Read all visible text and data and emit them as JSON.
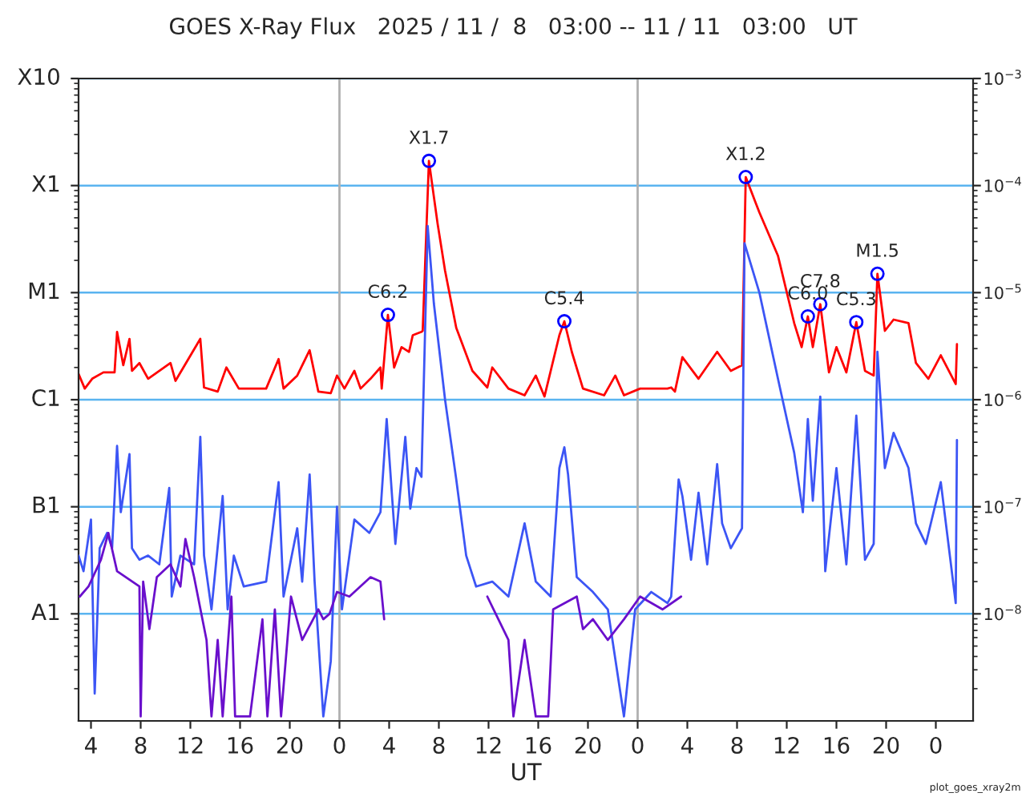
{
  "chart_data": {
    "type": "line",
    "title": "GOES X-Ray Flux   2025 / 11 /  8   03:00 -- 11 / 11   03:00   UT",
    "xlabel": "UT",
    "log": "y",
    "grid": "y",
    "legend": false,
    "xlim": [
      "2025-11-08T03:00",
      "2025-11-11T03:00"
    ],
    "xticks": [
      {
        "value": "2025-11-08T04:00",
        "label": "4"
      },
      {
        "value": "2025-11-08T08:00",
        "label": "8"
      },
      {
        "value": "2025-11-08T12:00",
        "label": "12"
      },
      {
        "value": "2025-11-08T16:00",
        "label": "16"
      },
      {
        "value": "2025-11-08T20:00",
        "label": "20"
      },
      {
        "value": "2025-11-09T00:00",
        "label": "0"
      },
      {
        "value": "2025-11-09T04:00",
        "label": "4"
      },
      {
        "value": "2025-11-09T08:00",
        "label": "8"
      },
      {
        "value": "2025-11-09T12:00",
        "label": "12"
      },
      {
        "value": "2025-11-09T16:00",
        "label": "16"
      },
      {
        "value": "2025-11-09T20:00",
        "label": "20"
      },
      {
        "value": "2025-11-10T00:00",
        "label": "0"
      },
      {
        "value": "2025-11-10T04:00",
        "label": "4"
      },
      {
        "value": "2025-11-10T08:00",
        "label": "8"
      },
      {
        "value": "2025-11-10T12:00",
        "label": "12"
      },
      {
        "value": "2025-11-10T16:00",
        "label": "16"
      },
      {
        "value": "2025-11-10T20:00",
        "label": "20"
      },
      {
        "value": "2025-11-11T00:00",
        "label": "0"
      }
    ],
    "ylim": [
      1e-09,
      0.001
    ],
    "yticks": [
      {
        "value": 1e-08,
        "label": "10$^{−8}$"
      },
      {
        "value": 1e-07,
        "label": "10$^{−7}$"
      },
      {
        "value": 1e-06,
        "label": "10$^{−6}$"
      },
      {
        "value": 1e-05,
        "label": "10$^{−5}$"
      },
      {
        "value": 0.0001,
        "label": "10$^{−4}$"
      },
      {
        "value": 0.001,
        "label": "10$^{−3}$"
      }
    ],
    "ref_lines": [
      {
        "axis": "x",
        "value": "2025-11-09T00:00",
        "color": "#b0b0b0"
      },
      {
        "axis": "x",
        "value": "2025-11-10T00:00",
        "color": "#b0b0b0"
      }
    ],
    "series": [
      {
        "color": "#ff0000",
        "x": [
          "2025-11-08T03:00",
          "2025-11-08T03:30",
          "2025-11-08T04:06",
          "2025-11-08T05:00",
          "2025-11-08T05:54",
          "2025-11-08T06:06",
          "2025-11-08T06:36",
          "2025-11-08T07:06",
          "2025-11-08T07:18",
          "2025-11-08T07:54",
          "2025-11-08T08:36",
          "2025-11-08T10:24",
          "2025-11-08T10:48",
          "2025-11-08T12:48",
          "2025-11-08T13:06",
          "2025-11-08T14:12",
          "2025-11-08T14:54",
          "2025-11-08T15:54",
          "2025-11-08T18:06",
          "2025-11-08T19:06",
          "2025-11-08T19:30",
          "2025-11-08T20:36",
          "2025-11-08T21:36",
          "2025-11-08T22:18",
          "2025-11-08T23:18",
          "2025-11-08T23:48",
          "2025-11-09T00:24",
          "2025-11-09T01:12",
          "2025-11-09T01:42",
          "2025-11-09T02:30",
          "2025-11-09T03:18",
          "2025-11-09T03:24",
          "2025-11-09T03:54",
          "2025-11-09T04:24",
          "2025-11-09T05:00",
          "2025-11-09T05:36",
          "2025-11-09T05:54",
          "2025-11-09T06:36",
          "2025-11-09T06:42",
          "2025-11-09T07:12",
          "2025-11-09T07:54",
          "2025-11-09T08:30",
          "2025-11-09T09:24",
          "2025-11-09T10:42",
          "2025-11-09T11:54",
          "2025-11-09T12:18",
          "2025-11-09T13:36",
          "2025-11-09T14:54",
          "2025-11-09T15:48",
          "2025-11-09T16:30",
          "2025-11-09T17:42",
          "2025-11-09T18:06",
          "2025-11-09T18:42",
          "2025-11-09T19:36",
          "2025-11-09T21:18",
          "2025-11-09T22:12",
          "2025-11-09T22:54",
          "2025-11-10T00:12",
          "2025-11-10T02:24",
          "2025-11-10T02:42",
          "2025-11-10T03:00",
          "2025-11-10T03:36",
          "2025-11-10T04:54",
          "2025-11-10T06:24",
          "2025-11-10T07:30",
          "2025-11-10T08:24",
          "2025-11-10T08:42",
          "2025-11-10T09:48",
          "2025-11-10T11:18",
          "2025-11-10T12:36",
          "2025-11-10T13:12",
          "2025-11-10T13:42",
          "2025-11-10T14:06",
          "2025-11-10T14:42",
          "2025-11-10T15:24",
          "2025-11-10T16:00",
          "2025-11-10T16:48",
          "2025-11-10T17:36",
          "2025-11-10T18:18",
          "2025-11-10T19:00",
          "2025-11-10T19:18",
          "2025-11-10T19:54",
          "2025-11-10T20:36",
          "2025-11-10T21:48",
          "2025-11-10T22:24",
          "2025-11-10T23:24",
          "2025-11-11T00:24",
          "2025-11-11T01:36",
          "2025-11-11T01:42"
        ],
        "values": [
          1.74e-06,
          1.27e-06,
          1.57e-06,
          1.8e-06,
          1.8e-06,
          4.3e-06,
          2.1e-06,
          3.7e-06,
          1.86e-06,
          2.2e-06,
          1.57e-06,
          2.2e-06,
          1.5e-06,
          3.7e-06,
          1.3e-06,
          1.19e-06,
          2e-06,
          1.27e-06,
          1.27e-06,
          2.4e-06,
          1.27e-06,
          1.68e-06,
          2.9e-06,
          1.19e-06,
          1.15e-06,
          1.68e-06,
          1.27e-06,
          1.86e-06,
          1.27e-06,
          1.57e-06,
          2e-06,
          1.27e-06,
          6.2e-06,
          2e-06,
          3.1e-06,
          2.8e-06,
          4e-06,
          4.3e-06,
          4.4e-06,
          0.00017,
          4.4e-05,
          1.6e-05,
          4.7e-06,
          1.86e-06,
          1.3e-06,
          2e-06,
          1.27e-06,
          1.1e-06,
          1.68e-06,
          1.07e-06,
          4e-06,
          5.4e-06,
          2.8e-06,
          1.27e-06,
          1.1e-06,
          1.68e-06,
          1.1e-06,
          1.27e-06,
          1.27e-06,
          1.3e-06,
          1.19e-06,
          2.5e-06,
          1.57e-06,
          2.8e-06,
          1.86e-06,
          2.1e-06,
          0.00012,
          5.6e-05,
          2.2e-05,
          5.2e-06,
          3.1e-06,
          6e-06,
          3.1e-06,
          7.8e-06,
          1.8e-06,
          3.1e-06,
          1.8e-06,
          5.3e-06,
          1.86e-06,
          1.68e-06,
          1.5e-05,
          4.4e-06,
          5.6e-06,
          5.2e-06,
          2.2e-06,
          1.57e-06,
          2.6e-06,
          1.4e-06,
          3.3e-06
        ]
      },
      {
        "color": "#3c55f5",
        "x": [
          "2025-11-08T03:00",
          "2025-11-08T03:24",
          "2025-11-08T04:00",
          "2025-11-08T04:18",
          "2025-11-08T04:42",
          "2025-11-08T05:18",
          "2025-11-08T05:42",
          "2025-11-08T06:06",
          "2025-11-08T06:24",
          "2025-11-08T07:06",
          "2025-11-08T07:18",
          "2025-11-08T07:54",
          "2025-11-08T08:36",
          "2025-11-08T09:30",
          "2025-11-08T10:18",
          "2025-11-08T10:30",
          "2025-11-08T11:12",
          "2025-11-08T12:18",
          "2025-11-08T12:48",
          "2025-11-08T13:06",
          "2025-11-08T13:42",
          "2025-11-08T14:36",
          "2025-11-08T15:00",
          "2025-11-08T15:30",
          "2025-11-08T16:18",
          "2025-11-08T18:06",
          "2025-11-08T19:06",
          "2025-11-08T19:30",
          "2025-11-08T20:36",
          "2025-11-08T21:00",
          "2025-11-08T21:36",
          "2025-11-08T22:00",
          "2025-11-08T22:42",
          "2025-11-08T23:18",
          "2025-11-08T23:48",
          "2025-11-09T00:12",
          "2025-11-09T01:12",
          "2025-11-09T02:24",
          "2025-11-09T03:18",
          "2025-11-09T03:48",
          "2025-11-09T04:30",
          "2025-11-09T05:18",
          "2025-11-09T05:42",
          "2025-11-09T06:12",
          "2025-11-09T06:36",
          "2025-11-09T07:06",
          "2025-11-09T07:36",
          "2025-11-09T08:30",
          "2025-11-09T09:24",
          "2025-11-09T10:12",
          "2025-11-09T11:00",
          "2025-11-09T12:18",
          "2025-11-09T13:36",
          "2025-11-09T14:54",
          "2025-11-09T15:48",
          "2025-11-09T17:00",
          "2025-11-09T17:42",
          "2025-11-09T18:06",
          "2025-11-09T18:24",
          "2025-11-09T19:06",
          "2025-11-09T20:24",
          "2025-11-09T21:36",
          "2025-11-09T22:54",
          "2025-11-09T23:48",
          "2025-11-10T01:06",
          "2025-11-10T02:24",
          "2025-11-10T02:42",
          "2025-11-10T03:18",
          "2025-11-10T03:36",
          "2025-11-10T04:18",
          "2025-11-10T04:54",
          "2025-11-10T05:36",
          "2025-11-10T06:24",
          "2025-11-10T06:48",
          "2025-11-10T07:30",
          "2025-11-10T08:24",
          "2025-11-10T08:36",
          "2025-11-10T09:48",
          "2025-11-10T11:18",
          "2025-11-10T12:36",
          "2025-11-10T13:18",
          "2025-11-10T13:42",
          "2025-11-10T14:06",
          "2025-11-10T14:42",
          "2025-11-10T15:06",
          "2025-11-10T16:00",
          "2025-11-10T16:48",
          "2025-11-10T17:36",
          "2025-11-10T18:18",
          "2025-11-10T19:00",
          "2025-11-10T19:18",
          "2025-11-10T19:54",
          "2025-11-10T20:36",
          "2025-11-10T21:48",
          "2025-11-10T22:24",
          "2025-11-10T23:12",
          "2025-11-11T00:24",
          "2025-11-11T01:36",
          "2025-11-11T01:42"
        ],
        "values": [
          3.5e-08,
          2.5e-08,
          7.6e-08,
          1.8e-09,
          4.1e-08,
          5.7e-08,
          4.1e-08,
          3.7e-07,
          8.9e-08,
          3.1e-07,
          4.1e-08,
          3.2e-08,
          3.5e-08,
          2.9e-08,
          1.5e-07,
          1.45e-08,
          3.5e-08,
          2.9e-08,
          4.5e-07,
          3.5e-08,
          1.1e-08,
          1.26e-07,
          1.1e-08,
          3.5e-08,
          1.8e-08,
          2e-08,
          1.7e-07,
          1.45e-08,
          6.3e-08,
          2e-08,
          2e-07,
          2e-08,
          1.1e-09,
          3.6e-09,
          1e-07,
          1.1e-08,
          7.6e-08,
          5.7e-08,
          8.9e-08,
          6.6e-07,
          4.5e-08,
          4.5e-07,
          9.6e-08,
          2.3e-07,
          1.9e-07,
          4.2e-05,
          7.9e-06,
          1e-06,
          1.8e-07,
          3.5e-08,
          1.8e-08,
          2e-08,
          1.45e-08,
          7e-08,
          2e-08,
          1.45e-08,
          2.3e-07,
          3.6e-07,
          2e-07,
          2.2e-08,
          1.6e-08,
          1.1e-08,
          1.1e-09,
          1.1e-08,
          1.6e-08,
          1.26e-08,
          1.45e-08,
          1.8e-07,
          1.26e-07,
          3.2e-08,
          1.35e-07,
          2.9e-08,
          2.5e-07,
          7e-08,
          4.1e-08,
          6.3e-08,
          2.9e-05,
          1e-05,
          1.56e-06,
          3.2e-07,
          8.9e-08,
          6.6e-07,
          1.14e-07,
          1.07e-06,
          2.5e-08,
          2.3e-07,
          2.9e-08,
          7.1e-07,
          3.2e-08,
          4.5e-08,
          2.8e-06,
          2.3e-07,
          4.9e-07,
          2.3e-07,
          7e-08,
          4.5e-08,
          1.7e-07,
          1.26e-08,
          4.2e-07
        ]
      },
      {
        "color": "#6a0fcc",
        "x": [
          "2025-11-08T03:06",
          "2025-11-08T03:48",
          "2025-11-08T04:48",
          "2025-11-08T05:24",
          "2025-11-08T06:06",
          "2025-11-08T07:54",
          "2025-11-08T08:00",
          "2025-11-08T08:12",
          "2025-11-08T08:42",
          "2025-11-08T09:18",
          "2025-11-08T10:24",
          "2025-11-08T11:12",
          "2025-11-08T11:36",
          "2025-11-08T12:18",
          "2025-11-08T13:18",
          "2025-11-08T13:42",
          "2025-11-08T14:12",
          "2025-11-08T14:36",
          "2025-11-08T15:18",
          "2025-11-08T15:36",
          "2025-11-08T16:48",
          "2025-11-08T17:48",
          "2025-11-08T18:12",
          "2025-11-08T18:48",
          "2025-11-08T19:18",
          "2025-11-08T20:06",
          "2025-11-08T21:00",
          "2025-11-08T22:18",
          "2025-11-08T22:42",
          "2025-11-08T23:12",
          "2025-11-08T23:48",
          "2025-11-09T00:48",
          "2025-11-09T02:30",
          "2025-11-09T03:18",
          "2025-11-09T03:36",
          "2025-11-09T06:00",
          "2025-11-09T11:54",
          "2025-11-09T13:36",
          "2025-11-09T14:00",
          "2025-11-09T14:54",
          "2025-11-09T15:48",
          "2025-11-09T16:48",
          "2025-11-09T17:12",
          "2025-11-09T19:06",
          "2025-11-09T19:36",
          "2025-11-09T20:24",
          "2025-11-09T21:36",
          "2025-11-09T22:54",
          "2025-11-10T00:12",
          "2025-11-10T02:00",
          "2025-11-10T03:30"
        ],
        "values": [
          1.45e-08,
          1.8e-08,
          3.2e-08,
          5.7e-08,
          2.5e-08,
          1.8e-08,
          1.1e-09,
          2e-08,
          7.2e-09,
          2.2e-08,
          2.9e-08,
          1.8e-08,
          5e-08,
          2.2e-08,
          5.7e-09,
          1.1e-09,
          5.7e-09,
          1.1e-09,
          1.45e-08,
          1.1e-09,
          1.1e-09,
          8.9e-09,
          1.1e-09,
          1.1e-08,
          1.1e-09,
          1.45e-08,
          5.7e-09,
          1.1e-08,
          8.9e-09,
          1e-08,
          1.6e-08,
          1.45e-08,
          2.2e-08,
          2e-08,
          8.9e-09,
          null,
          1.45e-08,
          5.7e-09,
          1.1e-09,
          5.7e-09,
          1.1e-09,
          1.1e-09,
          1.1e-08,
          1.45e-08,
          7.2e-09,
          8.9e-09,
          5.7e-09,
          8.9e-09,
          1.45e-08,
          1.1e-08,
          1.45e-08
        ]
      },
      {
        "type": "scatter",
        "color": "#0000ff",
        "marker": "circle",
        "x": [
          "2025-11-09T03:54",
          "2025-11-09T07:12",
          "2025-11-09T18:06",
          "2025-11-10T08:42",
          "2025-11-10T13:42",
          "2025-11-10T14:42",
          "2025-11-10T17:36",
          "2025-11-10T19:18"
        ],
        "values": [
          6.2e-06,
          0.00017,
          5.4e-06,
          0.00012,
          6e-06,
          7.8e-06,
          5.3e-06,
          1.5e-05
        ]
      }
    ],
    "annotations": [
      {
        "text": "C6.2",
        "x": "2025-11-09T03:54",
        "y": 6.2e-06
      },
      {
        "text": "X1.7",
        "x": "2025-11-09T07:12",
        "y": 0.00017
      },
      {
        "text": "C5.4",
        "x": "2025-11-09T18:06",
        "y": 5.4e-06
      },
      {
        "text": "X1.2",
        "x": "2025-11-10T08:42",
        "y": 0.00012
      },
      {
        "text": "C6.0",
        "x": "2025-11-10T13:42",
        "y": 6e-06
      },
      {
        "text": "C7.8",
        "x": "2025-11-10T14:42",
        "y": 7.8e-06
      },
      {
        "text": "C5.3",
        "x": "2025-11-10T17:36",
        "y": 5.3e-06
      },
      {
        "text": "M1.5",
        "x": "2025-11-10T19:18",
        "y": 1.5e-05
      },
      "A1",
      "B1",
      "C1",
      "M1",
      "X1",
      "X10",
      "plot_goes_xray2m"
    ]
  }
}
